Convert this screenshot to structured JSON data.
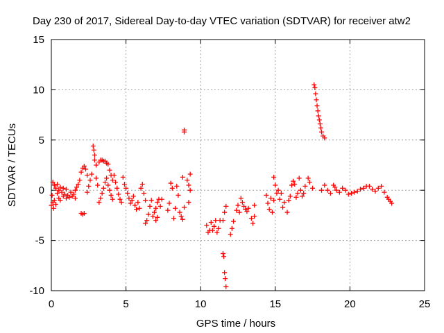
{
  "chart_data": {
    "type": "scatter",
    "title": "Day 230 of 2017, Sidereal Day-to-day VTEC variation (SDTVAR) for receiver atw2",
    "xlabel": "GPS time / hours",
    "ylabel": "SDTVAR / TECUs",
    "xlim": [
      0,
      25
    ],
    "ylim": [
      -10,
      15
    ],
    "xticks": [
      0,
      5,
      10,
      15,
      20,
      25
    ],
    "yticks": [
      -10,
      -5,
      0,
      5,
      10,
      15
    ],
    "grid": true,
    "marker": "+",
    "color": "#ff0000",
    "series": [
      {
        "name": "atw2",
        "points": [
          [
            0.0,
            -1.5
          ],
          [
            0.05,
            -0.5
          ],
          [
            0.1,
            -1.2
          ],
          [
            0.1,
            0.8
          ],
          [
            0.15,
            -1.8
          ],
          [
            0.2,
            0.5
          ],
          [
            0.2,
            -1.0
          ],
          [
            0.3,
            0.2
          ],
          [
            0.3,
            -1.4
          ],
          [
            0.4,
            -0.3
          ],
          [
            0.4,
            0.6
          ],
          [
            0.5,
            -0.8
          ],
          [
            0.5,
            0.0
          ],
          [
            0.6,
            0.3
          ],
          [
            0.6,
            -1.0
          ],
          [
            0.7,
            -0.2
          ],
          [
            0.8,
            -0.6
          ],
          [
            0.8,
            0.2
          ],
          [
            0.9,
            -0.4
          ],
          [
            1.0,
            -0.8
          ],
          [
            1.0,
            0.1
          ],
          [
            1.1,
            -0.5
          ],
          [
            1.2,
            -0.7
          ],
          [
            1.3,
            -0.2
          ],
          [
            1.4,
            -0.6
          ],
          [
            1.5,
            -0.4
          ],
          [
            1.6,
            0.0
          ],
          [
            1.7,
            0.3
          ],
          [
            1.8,
            0.6
          ],
          [
            1.9,
            1.0
          ],
          [
            1.6,
            -0.8
          ],
          [
            2.0,
            -2.3
          ],
          [
            2.1,
            -2.4
          ],
          [
            2.2,
            -2.3
          ],
          [
            2.0,
            1.8
          ],
          [
            2.1,
            2.2
          ],
          [
            2.2,
            2.4
          ],
          [
            2.3,
            2.1
          ],
          [
            2.4,
            1.5
          ],
          [
            2.4,
            -0.2
          ],
          [
            2.5,
            0.4
          ],
          [
            2.6,
            1.0
          ],
          [
            2.7,
            1.6
          ],
          [
            2.8,
            4.4
          ],
          [
            2.85,
            4.0
          ],
          [
            2.9,
            3.5
          ],
          [
            2.9,
            3.0
          ],
          [
            3.0,
            2.5
          ],
          [
            3.0,
            1.2
          ],
          [
            3.1,
            0.5
          ],
          [
            3.2,
            2.8
          ],
          [
            3.3,
            3.0
          ],
          [
            3.4,
            3.0
          ],
          [
            3.5,
            2.9
          ],
          [
            3.6,
            2.9
          ],
          [
            3.7,
            2.7
          ],
          [
            3.8,
            2.6
          ],
          [
            3.9,
            2.0
          ],
          [
            4.0,
            1.5
          ],
          [
            4.1,
            1.0
          ],
          [
            3.2,
            -1.2
          ],
          [
            3.3,
            -0.8
          ],
          [
            3.4,
            -0.3
          ],
          [
            3.5,
            0.2
          ],
          [
            3.6,
            0.8
          ],
          [
            3.7,
            1.2
          ],
          [
            3.8,
            0.5
          ],
          [
            3.9,
            0.0
          ],
          [
            4.0,
            -0.5
          ],
          [
            4.1,
            -0.9
          ],
          [
            4.2,
            1.5
          ],
          [
            4.3,
            0.8
          ],
          [
            4.4,
            0.2
          ],
          [
            4.5,
            -0.4
          ],
          [
            4.6,
            -0.9
          ],
          [
            4.7,
            -1.2
          ],
          [
            4.8,
            1.3
          ],
          [
            4.9,
            0.6
          ],
          [
            5.0,
            0.2
          ],
          [
            5.1,
            -0.3
          ],
          [
            5.2,
            -0.8
          ],
          [
            5.3,
            -1.3
          ],
          [
            5.4,
            -1.0
          ],
          [
            5.5,
            -0.6
          ],
          [
            5.6,
            -1.5
          ],
          [
            5.7,
            -1.9
          ],
          [
            5.8,
            -1.2
          ],
          [
            5.9,
            -1.8
          ],
          [
            6.0,
            0.2
          ],
          [
            6.1,
            0.6
          ],
          [
            6.2,
            -0.3
          ],
          [
            6.3,
            -1.0
          ],
          [
            6.3,
            -3.3
          ],
          [
            6.4,
            -3.0
          ],
          [
            6.5,
            -2.4
          ],
          [
            6.6,
            -1.6
          ],
          [
            6.7,
            -1.0
          ],
          [
            6.8,
            -2.6
          ],
          [
            6.9,
            -2.2
          ],
          [
            7.0,
            -1.8
          ],
          [
            7.1,
            -1.2
          ],
          [
            7.2,
            -0.9
          ],
          [
            7.0,
            -3.0
          ],
          [
            7.1,
            -2.7
          ],
          [
            7.3,
            -1.6
          ],
          [
            7.4,
            -0.9
          ],
          [
            7.8,
            -2.0
          ],
          [
            7.9,
            -1.3
          ],
          [
            8.0,
            0.7
          ],
          [
            8.1,
            0.2
          ],
          [
            8.2,
            -2.8
          ],
          [
            8.3,
            -1.8
          ],
          [
            8.4,
            0.4
          ],
          [
            8.5,
            -0.5
          ],
          [
            8.6,
            -2.2
          ],
          [
            8.7,
            -2.6
          ],
          [
            8.8,
            -2.9
          ],
          [
            8.9,
            -1.7
          ],
          [
            8.9,
            6.0
          ],
          [
            8.9,
            5.8
          ],
          [
            8.8,
            1.3
          ],
          [
            9.1,
            1.0
          ],
          [
            9.2,
            0.5
          ],
          [
            9.3,
            0.0
          ],
          [
            9.3,
            1.6
          ],
          [
            9.2,
            -1.2
          ],
          [
            10.4,
            -3.5
          ],
          [
            10.5,
            -4.2
          ],
          [
            10.6,
            -4.0
          ],
          [
            10.7,
            -3.2
          ],
          [
            10.8,
            -4.0
          ],
          [
            10.9,
            -3.6
          ],
          [
            11.0,
            -3.0
          ],
          [
            11.1,
            -4.2
          ],
          [
            11.2,
            -3.8
          ],
          [
            11.3,
            -3.0
          ],
          [
            11.5,
            -3.0
          ],
          [
            11.6,
            -2.2
          ],
          [
            11.7,
            -1.6
          ],
          [
            11.5,
            -6.3
          ],
          [
            11.55,
            -6.6
          ],
          [
            11.6,
            -8.2
          ],
          [
            11.65,
            -8.8
          ],
          [
            11.7,
            -9.6
          ],
          [
            12.0,
            -4.4
          ],
          [
            12.1,
            -3.8
          ],
          [
            12.2,
            -3.1
          ],
          [
            12.4,
            -2.0
          ],
          [
            12.5,
            -1.5
          ],
          [
            12.6,
            -2.2
          ],
          [
            12.7,
            -0.8
          ],
          [
            12.8,
            -1.2
          ],
          [
            12.9,
            -1.6
          ],
          [
            13.0,
            -1.9
          ],
          [
            13.1,
            -2.1
          ],
          [
            13.2,
            -1.8
          ],
          [
            13.4,
            -2.8
          ],
          [
            13.5,
            -3.3
          ],
          [
            13.6,
            -2.6
          ],
          [
            13.6,
            -1.5
          ],
          [
            14.4,
            -0.5
          ],
          [
            14.5,
            -1.3
          ],
          [
            14.6,
            -1.9
          ],
          [
            14.7,
            -0.8
          ],
          [
            14.8,
            -2.2
          ],
          [
            14.9,
            -1.0
          ],
          [
            14.9,
            1.3
          ],
          [
            15.0,
            0.5
          ],
          [
            15.1,
            -0.3
          ],
          [
            15.2,
            0.0
          ],
          [
            15.3,
            -0.9
          ],
          [
            15.4,
            -0.3
          ],
          [
            15.5,
            -1.7
          ],
          [
            15.6,
            -1.2
          ],
          [
            15.8,
            -2.2
          ],
          [
            15.9,
            -1.0
          ],
          [
            16.0,
            -0.6
          ],
          [
            16.1,
            0.5
          ],
          [
            16.2,
            0.9
          ],
          [
            16.3,
            0.6
          ],
          [
            16.4,
            -0.7
          ],
          [
            16.5,
            -0.3
          ],
          [
            16.6,
            1.2
          ],
          [
            16.7,
            0.0
          ],
          [
            16.8,
            -0.6
          ],
          [
            16.9,
            -0.3
          ],
          [
            17.0,
            0.4
          ],
          [
            17.2,
            1.2
          ],
          [
            17.3,
            0.8
          ],
          [
            17.5,
            0.2
          ],
          [
            17.6,
            10.5
          ],
          [
            17.65,
            10.2
          ],
          [
            17.7,
            9.6
          ],
          [
            17.75,
            9.0
          ],
          [
            17.8,
            8.4
          ],
          [
            17.85,
            7.9
          ],
          [
            17.9,
            7.4
          ],
          [
            17.95,
            7.0
          ],
          [
            18.0,
            6.6
          ],
          [
            18.05,
            6.2
          ],
          [
            18.1,
            5.8
          ],
          [
            18.2,
            5.4
          ],
          [
            18.3,
            5.2
          ],
          [
            18.1,
            0.0
          ],
          [
            18.3,
            0.5
          ],
          [
            18.5,
            0.0
          ],
          [
            18.7,
            -0.3
          ],
          [
            18.9,
            0.5
          ],
          [
            19.0,
            0.3
          ],
          [
            19.1,
            0.0
          ],
          [
            19.3,
            -0.2
          ],
          [
            19.5,
            0.2
          ],
          [
            19.7,
            0.0
          ],
          [
            19.9,
            -0.4
          ],
          [
            20.1,
            -0.3
          ],
          [
            20.3,
            -0.2
          ],
          [
            20.5,
            -0.1
          ],
          [
            20.7,
            0.1
          ],
          [
            20.9,
            0.2
          ],
          [
            21.1,
            0.4
          ],
          [
            21.3,
            0.4
          ],
          [
            21.5,
            0.1
          ],
          [
            21.7,
            -0.1
          ],
          [
            21.9,
            0.2
          ],
          [
            22.1,
            0.4
          ],
          [
            22.3,
            -0.2
          ],
          [
            22.5,
            -0.7
          ],
          [
            22.6,
            -0.9
          ],
          [
            22.7,
            -1.1
          ],
          [
            22.8,
            -1.3
          ]
        ]
      }
    ]
  }
}
